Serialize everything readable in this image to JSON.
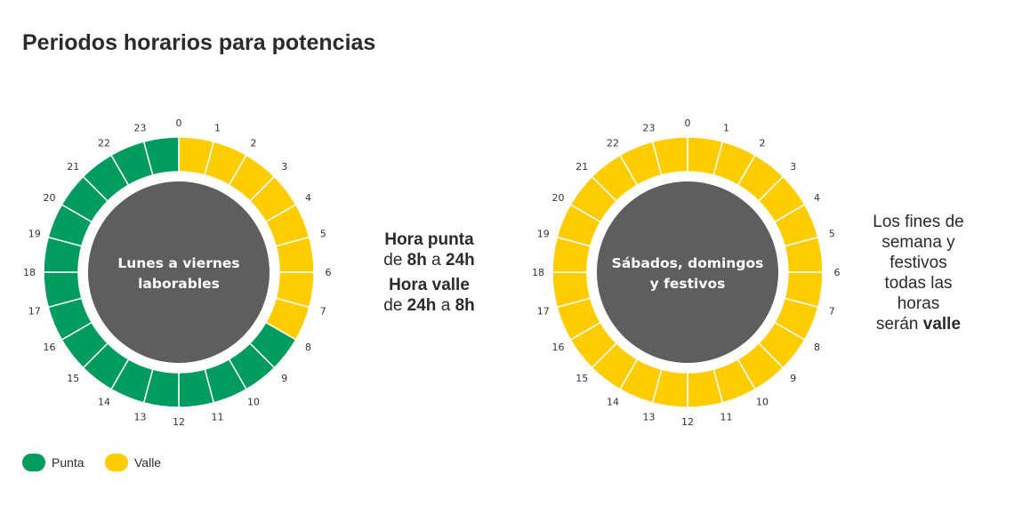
{
  "title": "Periodos horarios para potencias",
  "colors": {
    "punta": "#009b5e",
    "valle": "#ffcc00",
    "center": "#5e5e5e"
  },
  "clocks": [
    {
      "center_text": [
        "Lunes a viernes",
        "laborables"
      ],
      "hours": [
        0,
        1,
        2,
        3,
        4,
        5,
        6,
        7,
        8,
        9,
        10,
        11,
        12,
        13,
        14,
        15,
        16,
        17,
        18,
        19,
        20,
        21,
        22,
        23
      ],
      "periods": [
        "valle",
        "valle",
        "valle",
        "valle",
        "valle",
        "valle",
        "valle",
        "valle",
        "punta",
        "punta",
        "punta",
        "punta",
        "punta",
        "punta",
        "punta",
        "punta",
        "punta",
        "punta",
        "punta",
        "punta",
        "punta",
        "punta",
        "punta",
        "punta"
      ]
    },
    {
      "center_text": [
        "Sábados, domingos",
        "y festivos"
      ],
      "hours": [
        0,
        1,
        2,
        3,
        4,
        5,
        6,
        7,
        8,
        9,
        10,
        11,
        12,
        13,
        14,
        15,
        16,
        17,
        18,
        19,
        20,
        21,
        22,
        23
      ],
      "periods": [
        "valle",
        "valle",
        "valle",
        "valle",
        "valle",
        "valle",
        "valle",
        "valle",
        "valle",
        "valle",
        "valle",
        "valle",
        "valle",
        "valle",
        "valle",
        "valle",
        "valle",
        "valle",
        "valle",
        "valle",
        "valle",
        "valle",
        "valle",
        "valle"
      ]
    }
  ],
  "note_weekday": {
    "punta_title": "Hora punta",
    "punta_de": "de",
    "punta_from": "8h",
    "punta_a": "a",
    "punta_to": "24h",
    "valle_title": "Hora valle",
    "valle_de": "de",
    "valle_from": "24h",
    "valle_a": "a",
    "valle_to": "8h"
  },
  "note_weekend": {
    "lines": [
      "Los fines de",
      "semana y",
      "festivos",
      "todas las",
      "horas"
    ],
    "last_prefix": "serán",
    "last_bold": "valle"
  },
  "legend": [
    {
      "key": "punta",
      "label": "Punta"
    },
    {
      "key": "valle",
      "label": "Valle"
    }
  ]
}
